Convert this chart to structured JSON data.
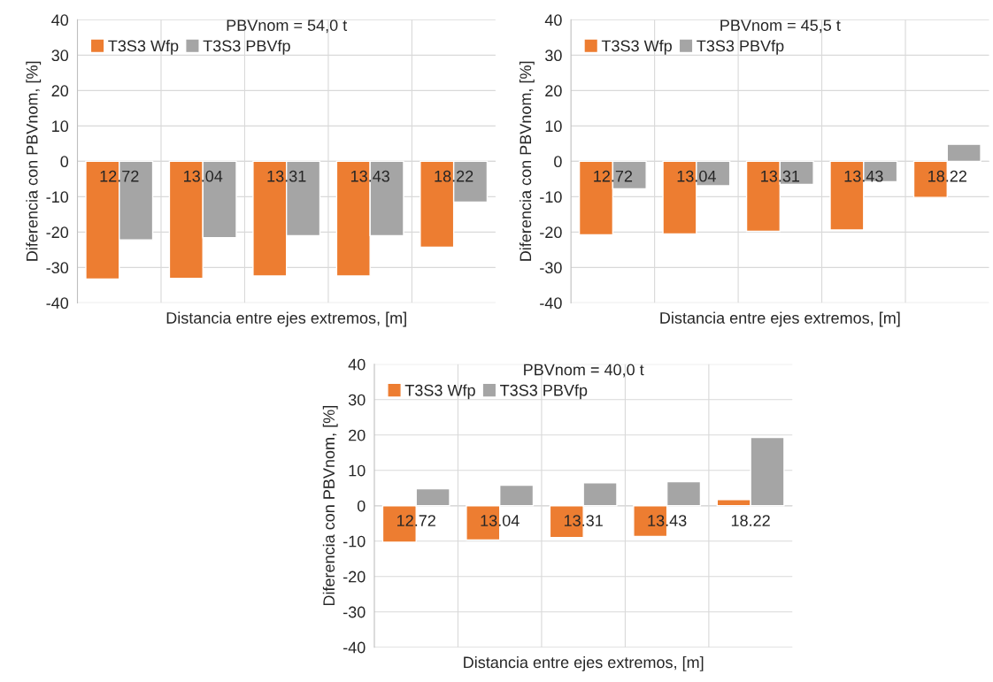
{
  "chart_data": [
    {
      "type": "bar",
      "title": "PBVnom = 54,0 t",
      "xlabel": "Distancia entre ejes extremos, [m]",
      "ylabel": "Diferencia con PBVnom, [%]",
      "categories": [
        "12.72",
        "13.04",
        "13.31",
        "13.43",
        "18.22"
      ],
      "series": [
        {
          "name": "T3S3 Wfp",
          "color": "#ed7d31",
          "values": [
            -33.3,
            -33.1,
            -32.4,
            -32.4,
            -24.3
          ]
        },
        {
          "name": "T3S3 PBVfp",
          "color": "#a5a5a5",
          "values": [
            -22.2,
            -21.6,
            -21.0,
            -21.0,
            -11.5
          ]
        }
      ],
      "ylim": [
        -40,
        40
      ],
      "yticks": [
        -40,
        -30,
        -20,
        -10,
        0,
        10,
        20,
        30,
        40
      ],
      "grid": true,
      "legend": "top left"
    },
    {
      "type": "bar",
      "title": "PBVnom = 45,5 t",
      "xlabel": "Distancia entre ejes extremos, [m]",
      "ylabel": "Diferencia con PBVnom, [%]",
      "categories": [
        "12.72",
        "13.04",
        "13.31",
        "13.43",
        "18.22"
      ],
      "series": [
        {
          "name": "T3S3 Wfp",
          "color": "#ed7d31",
          "values": [
            -20.8,
            -20.5,
            -19.8,
            -19.4,
            -10.2
          ]
        },
        {
          "name": "T3S3 PBVfp",
          "color": "#a5a5a5",
          "values": [
            -7.8,
            -6.9,
            -6.5,
            -5.8,
            4.8
          ]
        }
      ],
      "ylim": [
        -40,
        40
      ],
      "yticks": [
        -40,
        -30,
        -20,
        -10,
        0,
        10,
        20,
        30,
        40
      ],
      "grid": true,
      "legend": "top left"
    },
    {
      "type": "bar",
      "title": "PBVnom = 40,0 t",
      "xlabel": "Distancia entre ejes extremos, [m]",
      "ylabel": "Diferencia con PBVnom, [%]",
      "categories": [
        "12.72",
        "13.04",
        "13.31",
        "13.43",
        "18.22"
      ],
      "series": [
        {
          "name": "T3S3 Wfp",
          "color": "#ed7d31",
          "values": [
            -10.3,
            -9.7,
            -9.0,
            -8.7,
            1.7
          ]
        },
        {
          "name": "T3S3 PBVfp",
          "color": "#a5a5a5",
          "values": [
            4.8,
            5.8,
            6.5,
            6.8,
            19.3
          ]
        }
      ],
      "ylim": [
        -40,
        40
      ],
      "yticks": [
        -40,
        -30,
        -20,
        -10,
        0,
        10,
        20,
        30,
        40
      ],
      "grid": true,
      "legend": "top left"
    }
  ]
}
